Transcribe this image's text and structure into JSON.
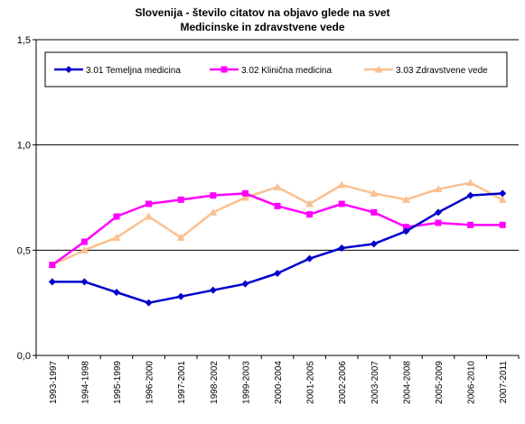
{
  "chart_data": {
    "type": "line",
    "title": "Slovenija - število citatov na objavo glede na svet",
    "subtitle": "Medicinske in zdravstvene vede",
    "xlabel": "",
    "ylabel": "",
    "ylim": [
      0,
      1.5
    ],
    "yticks": [
      "0,0",
      "0,5",
      "1,0",
      "1,5"
    ],
    "yticks_values": [
      0,
      0.5,
      1.0,
      1.5
    ],
    "grid": "horizontal major",
    "legend_position": "top",
    "categories": [
      "1993-1997",
      "1994-1998",
      "1995-1999",
      "1996-2000",
      "1997-2001",
      "1998-2002",
      "1999-2003",
      "2000-2004",
      "2001-2005",
      "2002-2006",
      "2003-2007",
      "2004-2008",
      "2005-2009",
      "2006-2010",
      "2007-2011"
    ],
    "series": [
      {
        "name": "3.01 Temeljna medicina",
        "color": "#0000CC",
        "marker": "diamond",
        "values": [
          0.35,
          0.35,
          0.3,
          0.25,
          0.28,
          0.31,
          0.34,
          0.39,
          0.46,
          0.51,
          0.53,
          0.59,
          0.68,
          0.76,
          0.77
        ]
      },
      {
        "name": "3.02 Klinična medicina",
        "color": "#FF00FF",
        "marker": "square",
        "values": [
          0.43,
          0.54,
          0.66,
          0.72,
          0.74,
          0.76,
          0.77,
          0.71,
          0.67,
          0.72,
          0.68,
          0.61,
          0.63,
          0.62,
          0.62
        ]
      },
      {
        "name": "3.03 Zdravstvene vede",
        "color": "#FAC090",
        "marker": "triangle",
        "values": [
          0.43,
          0.5,
          0.56,
          0.66,
          0.56,
          0.68,
          0.75,
          0.8,
          0.72,
          0.81,
          0.77,
          0.74,
          0.79,
          0.82,
          0.74
        ]
      }
    ]
  }
}
